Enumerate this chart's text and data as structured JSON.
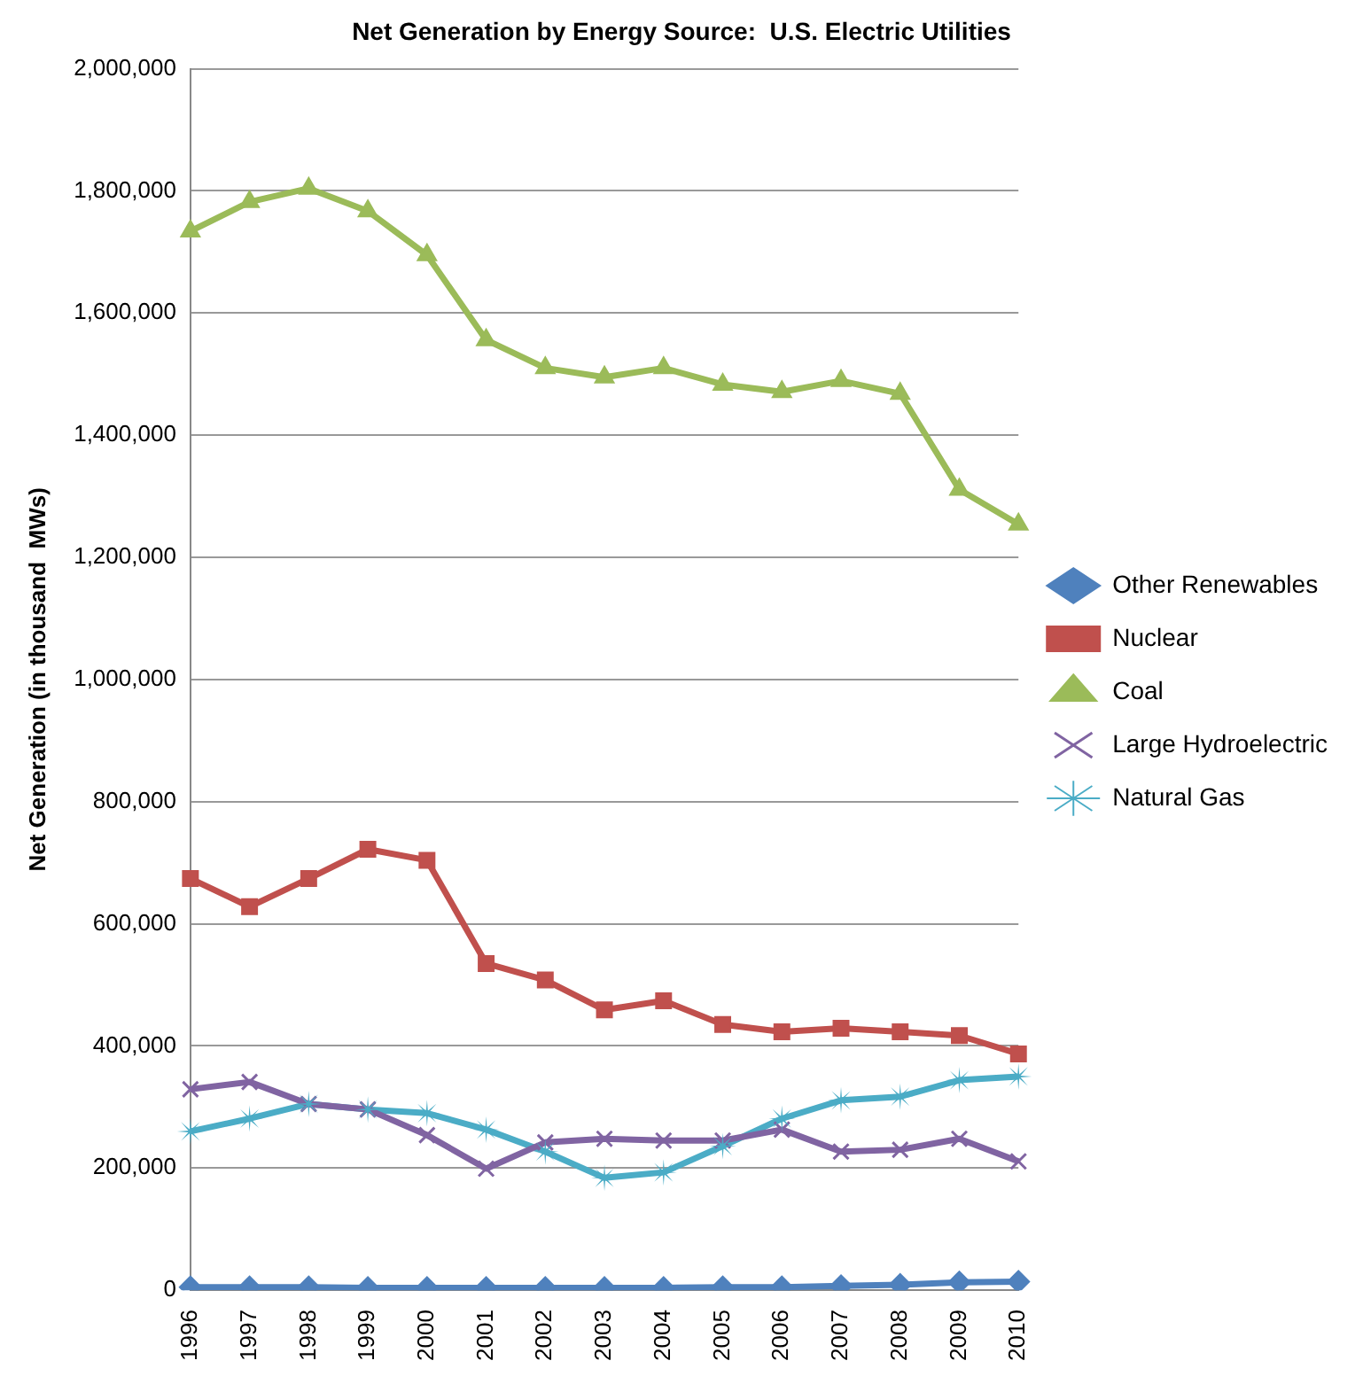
{
  "chart_data": {
    "type": "line",
    "title": "Net Generation by Energy Source:  U.S. Electric Utilities",
    "ylabel": "Net Generation (in thousand  MWs)",
    "categories": [
      "1996",
      "1997",
      "1998",
      "1999",
      "2000",
      "2001",
      "2002",
      "2003",
      "2004",
      "2005",
      "2006",
      "2007",
      "2008",
      "2009",
      "2010"
    ],
    "series": [
      {
        "name": "Other Renewables",
        "color": "#4f81bd",
        "marker": "diamond",
        "values": [
          5000,
          5000,
          5000,
          4000,
          4000,
          4000,
          4000,
          4000,
          4000,
          5000,
          5000,
          7000,
          9000,
          13000,
          14000
        ]
      },
      {
        "name": "Nuclear",
        "color": "#c0504d",
        "marker": "square",
        "values": [
          674000,
          628000,
          674000,
          722000,
          704000,
          535000,
          508000,
          459000,
          474000,
          435000,
          423000,
          429000,
          423000,
          417000,
          387000
        ]
      },
      {
        "name": "Coal",
        "color": "#9bbb59",
        "marker": "triangle",
        "values": [
          1734000,
          1782000,
          1804000,
          1767000,
          1695000,
          1556000,
          1510000,
          1495000,
          1510000,
          1483000,
          1471000,
          1489000,
          1468000,
          1311000,
          1254000
        ]
      },
      {
        "name": "Large Hydroelectric",
        "color": "#8064a2",
        "marker": "cross",
        "values": [
          329000,
          341000,
          305000,
          296000,
          254000,
          199000,
          242000,
          248000,
          245000,
          245000,
          263000,
          227000,
          230000,
          248000,
          211000
        ]
      },
      {
        "name": "Natural Gas",
        "color": "#4bacc6",
        "marker": "star",
        "values": [
          260000,
          281000,
          305000,
          296000,
          290000,
          263000,
          227000,
          184000,
          193000,
          236000,
          281000,
          311000,
          317000,
          344000,
          350000
        ]
      }
    ],
    "ylim": [
      0,
      2000000
    ],
    "yticks": [
      0,
      {
        "value": 200000,
        "label": "200,000"
      },
      {
        "value": 400000,
        "label": "400,000"
      },
      {
        "value": 600000,
        "label": "600,000"
      },
      {
        "value": 800000,
        "label": "800,000"
      },
      {
        "value": 1000000,
        "label": "1,000,000"
      },
      {
        "value": 1200000,
        "label": "1,200,000"
      },
      {
        "value": 1400000,
        "label": "1,400,000"
      },
      {
        "value": 1600000,
        "label": "1,600,000"
      },
      {
        "value": 1800000,
        "label": "1,800,000"
      },
      {
        "value": 2000000,
        "label": "2,000,000"
      }
    ],
    "grid": "y",
    "legend": "right"
  }
}
